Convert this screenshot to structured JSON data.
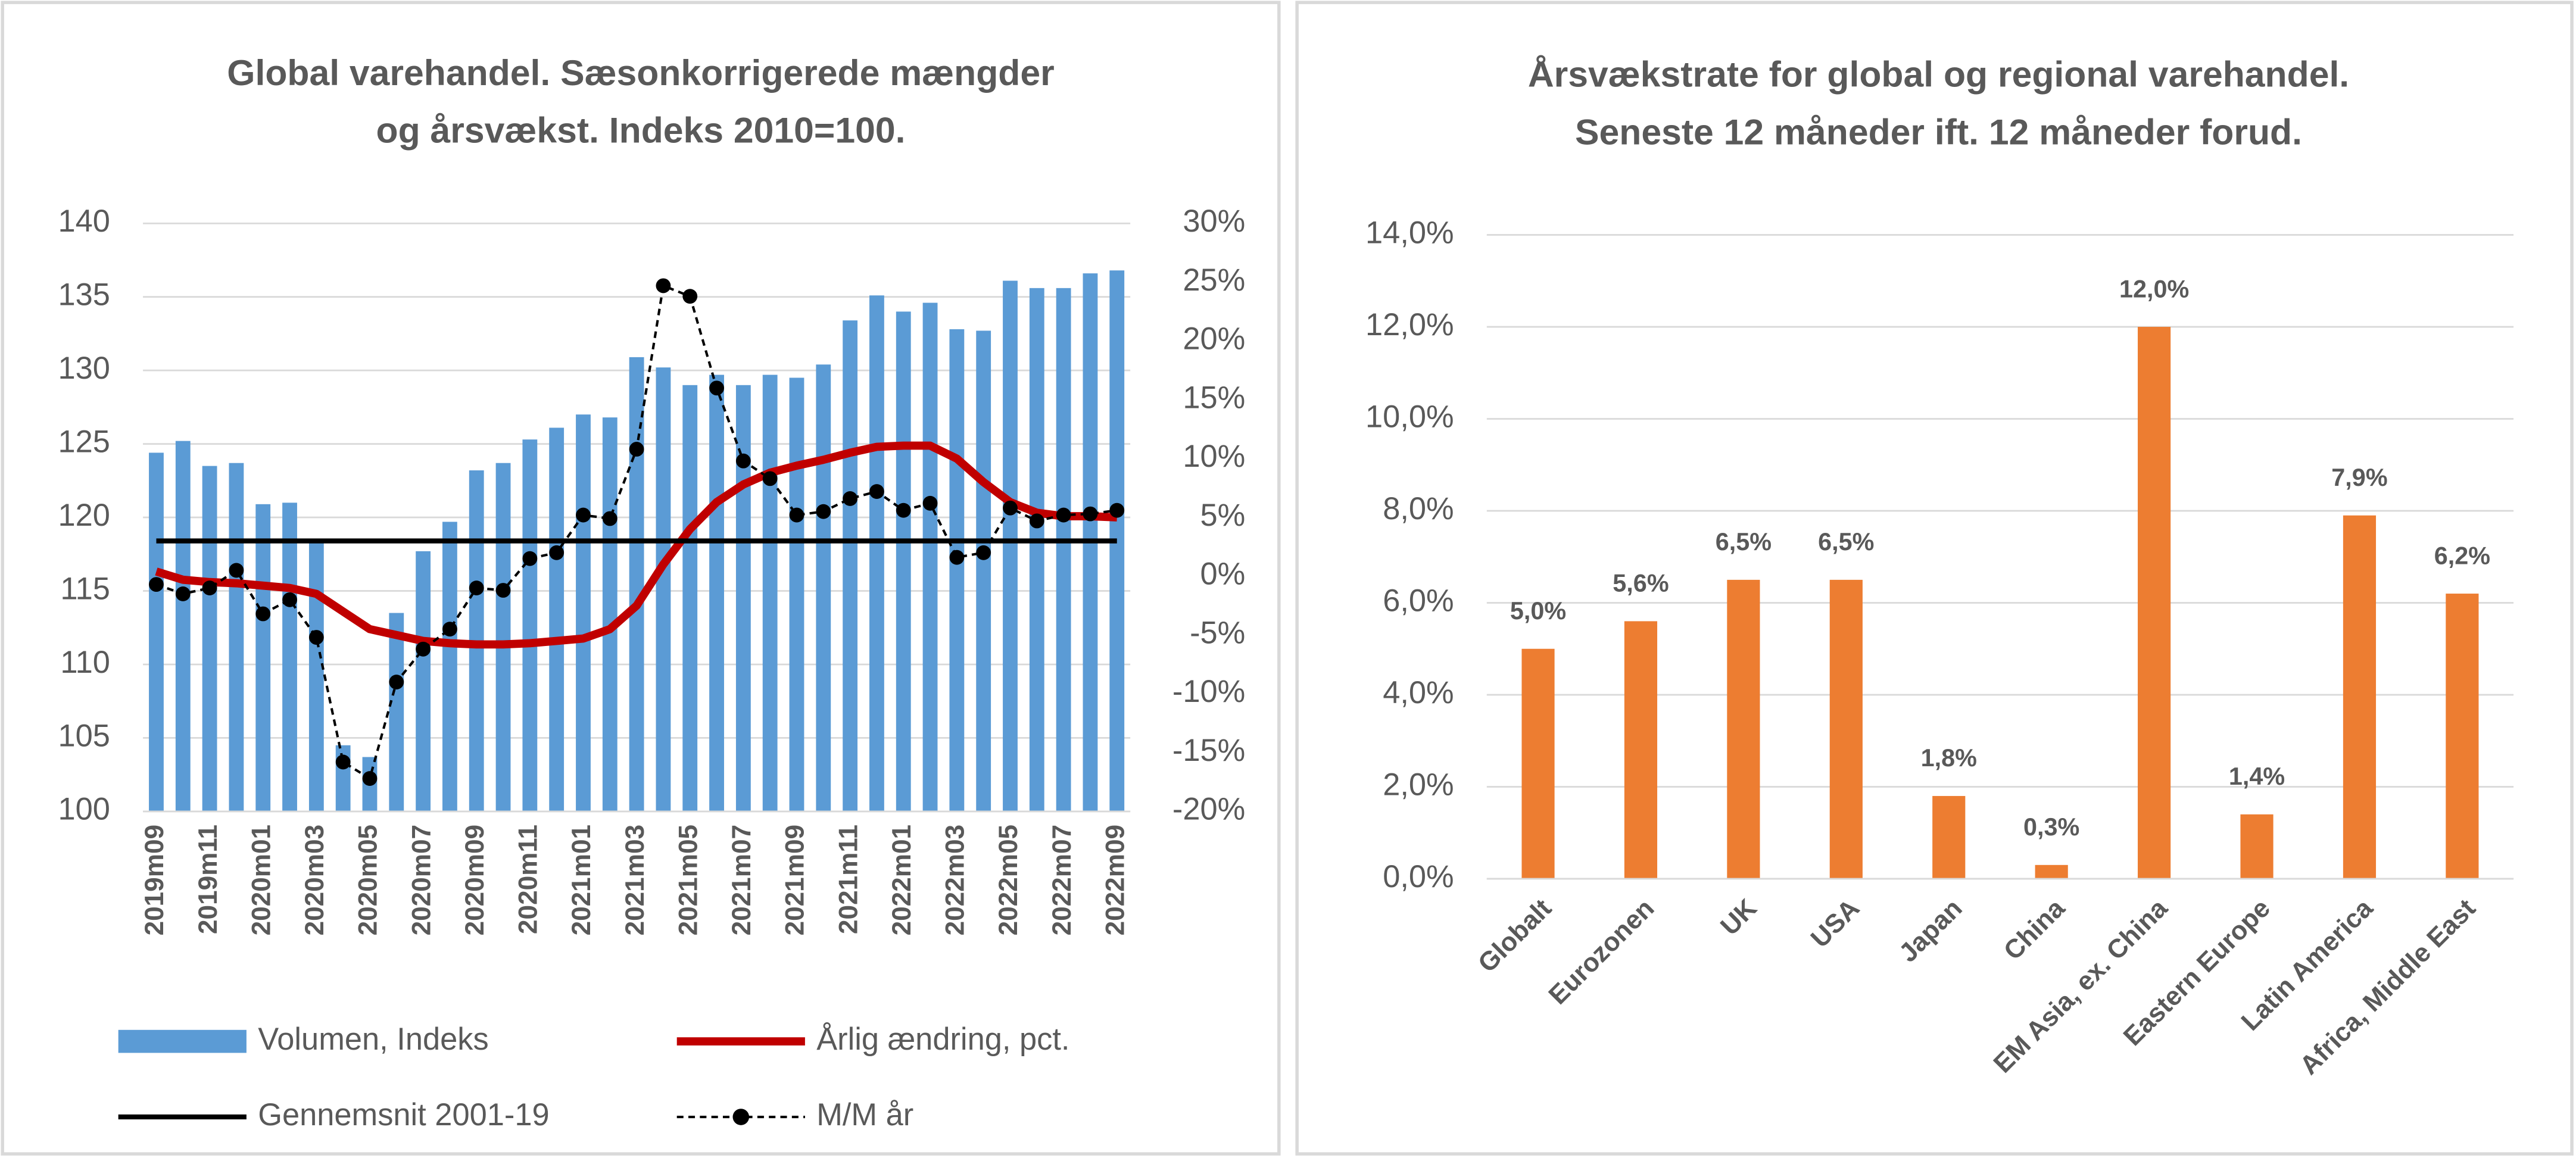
{
  "chart_data": [
    {
      "type": "combo",
      "title": [
        "Global varehandel. Sæsonkorrigerede mængder",
        "og årsvækst. Indeks 2010=100."
      ],
      "categories": [
        "2019m09",
        null,
        "2019m11",
        null,
        "2020m01",
        null,
        "2020m03",
        null,
        "2020m05",
        null,
        "2020m07",
        null,
        "2020m09",
        null,
        "2020m11",
        null,
        "2021m01",
        null,
        "2021m03",
        null,
        "2021m05",
        null,
        "2021m07",
        null,
        "2021m09",
        null,
        "2021m11",
        null,
        "2022m01",
        null,
        "2022m03",
        null,
        "2022m05",
        null,
        "2022m07",
        null,
        "2022m09"
      ],
      "ylim": [
        100,
        140
      ],
      "yticks": [
        100,
        105,
        110,
        115,
        120,
        125,
        130,
        135,
        140
      ],
      "y2lim": [
        -20,
        30
      ],
      "y2ticks": [
        {
          "value": -20,
          "label": "-20%"
        },
        {
          "value": -15,
          "label": "-15%"
        },
        {
          "value": -10,
          "label": "-10%"
        },
        {
          "value": -5,
          "label": "-5%"
        },
        {
          "value": 0,
          "label": "0%"
        },
        {
          "value": 5,
          "label": "5%"
        },
        {
          "value": 10,
          "label": "10%"
        },
        {
          "value": 15,
          "label": "15%"
        },
        {
          "value": 20,
          "label": "20%"
        },
        {
          "value": 25,
          "label": "25%"
        },
        {
          "value": 30,
          "label": "30%"
        }
      ],
      "grid": true,
      "series": [
        {
          "name": "Volumen, Indeks",
          "type": "bar",
          "color": "#5b9bd5",
          "values": [
            124.4,
            125.2,
            123.5,
            123.7,
            120.9,
            121.0,
            118.4,
            104.5,
            103.7,
            113.5,
            117.7,
            119.7,
            123.2,
            123.7,
            125.3,
            126.1,
            127.0,
            126.8,
            130.9,
            130.2,
            129.0,
            129.7,
            129.0,
            129.7,
            129.5,
            130.4,
            133.4,
            135.1,
            134.0,
            134.6,
            132.8,
            132.7,
            136.1,
            135.6,
            135.6,
            136.6,
            136.8
          ]
        },
        {
          "name": "Årlig ændring, pct.",
          "type": "line",
          "axis": "y2",
          "color": "#c00000",
          "width": 5,
          "values": [
            0.4,
            -0.3,
            -0.5,
            -0.6,
            -0.8,
            -1.0,
            -1.5,
            -3.0,
            -4.5,
            -5.0,
            -5.5,
            -5.7,
            -5.8,
            -5.8,
            -5.7,
            -5.5,
            -5.3,
            -4.5,
            -2.5,
            1.0,
            4.0,
            6.3,
            7.8,
            8.8,
            9.4,
            9.9,
            10.5,
            11.0,
            11.1,
            11.1,
            10.0,
            8.0,
            6.3,
            5.4,
            5.1,
            5.1,
            5.0
          ]
        },
        {
          "name": "Gennemsnit 2001-19",
          "type": "line",
          "axis": "y2",
          "color": "#000000",
          "width": 3,
          "values": [
            3.0,
            3.0,
            3.0,
            3.0,
            3.0,
            3.0,
            3.0,
            3.0,
            3.0,
            3.0,
            3.0,
            3.0,
            3.0,
            3.0,
            3.0,
            3.0,
            3.0,
            3.0,
            3.0,
            3.0,
            3.0,
            3.0,
            3.0,
            3.0,
            3.0,
            3.0,
            3.0,
            3.0,
            3.0,
            3.0,
            3.0,
            3.0,
            3.0,
            3.0,
            3.0,
            3.0,
            3.0
          ]
        },
        {
          "name": "M/M år",
          "type": "line",
          "axis": "y2",
          "color": "#000000",
          "width": 1.5,
          "dashed": true,
          "marker": "circle",
          "values": [
            -0.7,
            -1.5,
            -1.0,
            0.5,
            -3.2,
            -2.0,
            -5.2,
            -15.8,
            -17.2,
            -9.0,
            -6.2,
            -4.5,
            -1.0,
            -1.2,
            1.5,
            2.0,
            5.2,
            4.9,
            10.8,
            24.7,
            23.8,
            16.0,
            9.8,
            8.3,
            5.2,
            5.5,
            6.6,
            7.2,
            5.6,
            6.2,
            1.6,
            2.0,
            5.8,
            4.7,
            5.2,
            5.3,
            5.6
          ]
        }
      ]
    },
    {
      "type": "bar",
      "title": [
        "Årsvækstrate for global og regional varehandel.",
        "Seneste 12 måneder ift. 12 måneder forud."
      ],
      "categories": [
        "Globalt",
        "Eurozonen",
        "UK",
        "USA",
        "Japan",
        "China",
        "EM Asia, ex. China",
        "Eastern Europe",
        "Latin America",
        "Africa, Middle East"
      ],
      "values": [
        5.0,
        5.6,
        6.5,
        6.5,
        1.8,
        0.3,
        12.0,
        1.4,
        7.9,
        6.2
      ],
      "value_labels": [
        "5,0%",
        "5,6%",
        "6,5%",
        "6,5%",
        "1,8%",
        "0,3%",
        "12,0%",
        "1,4%",
        "7,9%",
        "6,2%"
      ],
      "color": "#ed7d31",
      "ylim": [
        0,
        14
      ],
      "yticks": [
        {
          "value": 0,
          "label": "0,0%"
        },
        {
          "value": 2,
          "label": "2,0%"
        },
        {
          "value": 4,
          "label": "4,0%"
        },
        {
          "value": 6,
          "label": "6,0%"
        },
        {
          "value": 8,
          "label": "8,0%"
        },
        {
          "value": 10,
          "label": "10,0%"
        },
        {
          "value": 12,
          "label": "12,0%"
        },
        {
          "value": 14,
          "label": "14,0%"
        }
      ],
      "grid": true
    }
  ]
}
